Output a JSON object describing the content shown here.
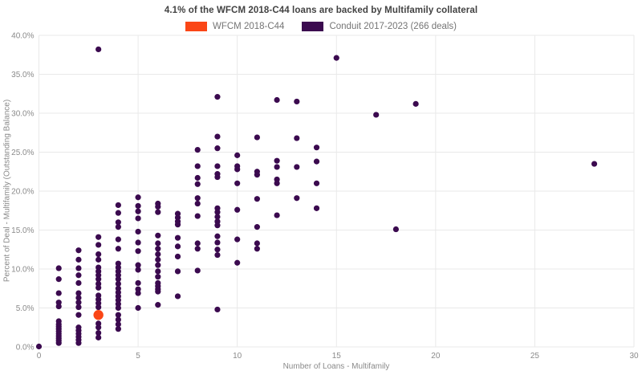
{
  "title": "4.1% of the WFCM 2018-C44 loans are backed by Multifamily collateral",
  "legend": [
    {
      "label": "WFCM 2018-C44",
      "color": "#fa4616",
      "swatch_icon": "color-swatch"
    },
    {
      "label": "Conduit 2017-2023 (266 deals)",
      "color": "#3b0a4f",
      "swatch_icon": "color-swatch"
    }
  ],
  "colors": {
    "background": "#ffffff",
    "gridline": "#e9e9e9",
    "tick_text": "#8a8a8a",
    "title_text": "#424242",
    "wfcm_accent": "#fa4616",
    "conduit_accent": "#3b0a4f"
  },
  "chart_data": {
    "type": "scatter",
    "title": "4.1% of the WFCM 2018-C44 loans are backed by Multifamily collateral",
    "xlabel": "Number of Loans - Multifamily",
    "ylabel": "Percent of Deal - Multifamily (Outstanding Balance)",
    "xlim": [
      0,
      30
    ],
    "ylim": [
      0,
      40
    ],
    "grid": true,
    "legend_position": "top-center",
    "x_ticks": [
      "0",
      "5",
      "10",
      "15",
      "20",
      "25",
      "30"
    ],
    "x_tick_values": [
      0,
      5,
      10,
      15,
      20,
      25,
      30
    ],
    "y_ticks": [
      "0.0%",
      "5.0%",
      "10.0%",
      "15.0%",
      "20.0%",
      "25.0%",
      "30.0%",
      "35.0%",
      "40.0%"
    ],
    "y_tick_values": [
      0,
      5,
      10,
      15,
      20,
      25,
      30,
      35,
      40
    ],
    "series": [
      {
        "name": "WFCM 2018-C44",
        "color": "#fa4616",
        "marker_size": 6.2,
        "points": [
          [
            3,
            4.1
          ]
        ]
      },
      {
        "name": "Conduit 2017-2023 (266 deals)",
        "color": "#3b0a4f",
        "marker_size": 3.6,
        "points": [
          [
            0,
            0.05
          ],
          [
            1,
            10.1
          ],
          [
            1,
            8.7
          ],
          [
            1,
            6.9
          ],
          [
            1,
            5.7
          ],
          [
            1,
            5.2
          ],
          [
            1,
            3.3
          ],
          [
            1,
            2.9
          ],
          [
            1,
            2.6
          ],
          [
            1,
            2.3
          ],
          [
            1,
            2.0
          ],
          [
            1,
            1.7
          ],
          [
            1,
            1.4
          ],
          [
            1,
            1.1
          ],
          [
            1,
            0.8
          ],
          [
            1,
            0.5
          ],
          [
            2,
            12.4
          ],
          [
            2,
            11.2
          ],
          [
            2,
            10.1
          ],
          [
            2,
            9.2
          ],
          [
            2,
            8.2
          ],
          [
            2,
            6.9
          ],
          [
            2,
            6.3
          ],
          [
            2,
            5.7
          ],
          [
            2,
            5.1
          ],
          [
            2,
            4.1
          ],
          [
            2,
            2.5
          ],
          [
            2,
            2.1
          ],
          [
            2,
            1.7
          ],
          [
            2,
            1.3
          ],
          [
            2,
            0.9
          ],
          [
            2,
            0.5
          ],
          [
            3,
            38.2
          ],
          [
            3,
            14.1
          ],
          [
            3,
            13.1
          ],
          [
            3,
            11.9
          ],
          [
            3,
            11.2
          ],
          [
            3,
            10.2
          ],
          [
            3,
            9.7
          ],
          [
            3,
            9.2
          ],
          [
            3,
            8.7
          ],
          [
            3,
            8.1
          ],
          [
            3,
            7.6
          ],
          [
            3,
            6.6
          ],
          [
            3,
            6.1
          ],
          [
            3,
            5.6
          ],
          [
            3,
            5.1
          ],
          [
            3,
            3.0
          ],
          [
            3,
            2.5
          ],
          [
            3,
            1.8
          ],
          [
            3,
            1.2
          ],
          [
            4,
            18.2
          ],
          [
            4,
            17.2
          ],
          [
            4,
            16.0
          ],
          [
            4,
            15.4
          ],
          [
            4,
            13.8
          ],
          [
            4,
            12.6
          ],
          [
            4,
            10.7
          ],
          [
            4,
            10.2
          ],
          [
            4,
            9.7
          ],
          [
            4,
            9.2
          ],
          [
            4,
            8.7
          ],
          [
            4,
            8.1
          ],
          [
            4,
            7.5
          ],
          [
            4,
            7.0
          ],
          [
            4,
            6.5
          ],
          [
            4,
            6.0
          ],
          [
            4,
            5.5
          ],
          [
            4,
            5.0
          ],
          [
            4,
            4.1
          ],
          [
            4,
            3.5
          ],
          [
            4,
            2.9
          ],
          [
            4,
            2.3
          ],
          [
            5,
            19.2
          ],
          [
            5,
            18.1
          ],
          [
            5,
            17.4
          ],
          [
            5,
            16.5
          ],
          [
            5,
            14.8
          ],
          [
            5,
            13.4
          ],
          [
            5,
            12.3
          ],
          [
            5,
            10.5
          ],
          [
            5,
            9.9
          ],
          [
            5,
            8.2
          ],
          [
            5,
            7.4
          ],
          [
            5,
            6.9
          ],
          [
            5,
            5.0
          ],
          [
            6,
            18.4
          ],
          [
            6,
            18.0
          ],
          [
            6,
            17.3
          ],
          [
            6,
            14.3
          ],
          [
            6,
            13.3
          ],
          [
            6,
            12.6
          ],
          [
            6,
            11.9
          ],
          [
            6,
            11.2
          ],
          [
            6,
            10.5
          ],
          [
            6,
            9.7
          ],
          [
            6,
            9.0
          ],
          [
            6,
            8.2
          ],
          [
            6,
            7.8
          ],
          [
            6,
            7.4
          ],
          [
            6,
            7.1
          ],
          [
            6,
            5.4
          ],
          [
            7,
            17.1
          ],
          [
            7,
            16.6
          ],
          [
            7,
            16.1
          ],
          [
            7,
            15.7
          ],
          [
            7,
            14.0
          ],
          [
            7,
            12.9
          ],
          [
            7,
            11.6
          ],
          [
            7,
            9.7
          ],
          [
            7,
            6.5
          ],
          [
            8,
            25.3
          ],
          [
            8,
            23.2
          ],
          [
            8,
            21.7
          ],
          [
            8,
            20.9
          ],
          [
            8,
            19.1
          ],
          [
            8,
            18.4
          ],
          [
            8,
            16.8
          ],
          [
            8,
            13.3
          ],
          [
            8,
            12.6
          ],
          [
            8,
            9.8
          ],
          [
            9,
            32.1
          ],
          [
            9,
            27.0
          ],
          [
            9,
            25.5
          ],
          [
            9,
            23.2
          ],
          [
            9,
            22.2
          ],
          [
            9,
            21.8
          ],
          [
            9,
            17.8
          ],
          [
            9,
            17.3
          ],
          [
            9,
            16.7
          ],
          [
            9,
            16.1
          ],
          [
            9,
            15.6
          ],
          [
            9,
            14.2
          ],
          [
            9,
            13.4
          ],
          [
            9,
            12.5
          ],
          [
            9,
            11.8
          ],
          [
            9,
            4.8
          ],
          [
            10,
            24.6
          ],
          [
            10,
            23.2
          ],
          [
            10,
            22.8
          ],
          [
            10,
            21.0
          ],
          [
            10,
            17.6
          ],
          [
            10,
            13.8
          ],
          [
            10,
            10.8
          ],
          [
            11,
            26.9
          ],
          [
            11,
            22.5
          ],
          [
            11,
            22.1
          ],
          [
            11,
            19.0
          ],
          [
            11,
            15.4
          ],
          [
            11,
            13.3
          ],
          [
            11,
            12.6
          ],
          [
            12,
            31.7
          ],
          [
            12,
            23.9
          ],
          [
            12,
            23.1
          ],
          [
            12,
            21.5
          ],
          [
            12,
            21.0
          ],
          [
            12,
            16.9
          ],
          [
            13,
            31.5
          ],
          [
            13,
            26.8
          ],
          [
            13,
            23.1
          ],
          [
            13,
            19.1
          ],
          [
            14,
            25.6
          ],
          [
            14,
            23.8
          ],
          [
            14,
            21.0
          ],
          [
            14,
            17.8
          ],
          [
            15,
            37.1
          ],
          [
            17,
            29.8
          ],
          [
            18,
            15.1
          ],
          [
            19,
            31.2
          ],
          [
            28,
            23.5
          ]
        ]
      }
    ]
  }
}
